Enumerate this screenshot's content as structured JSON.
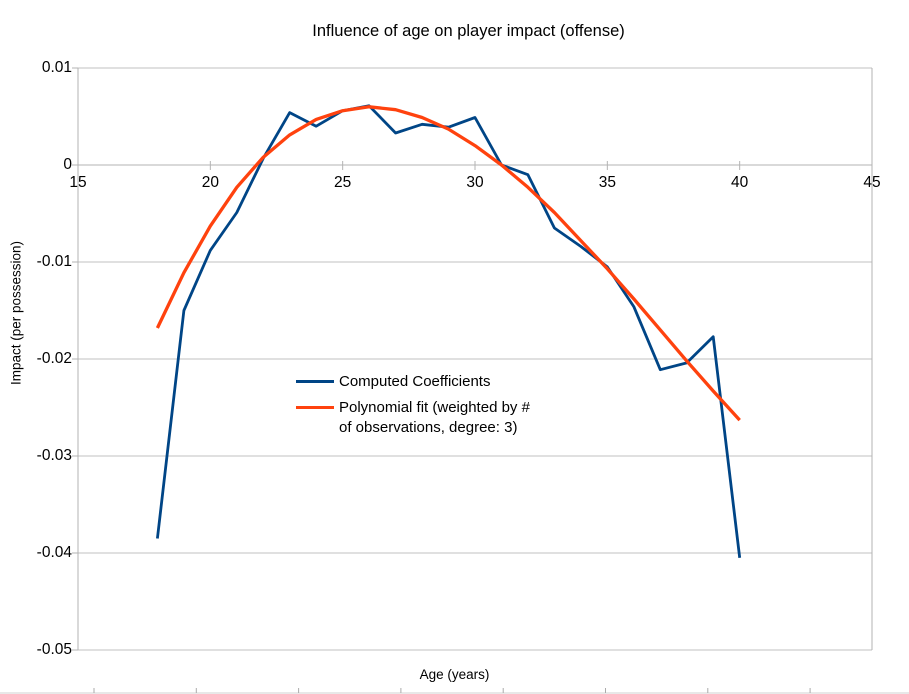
{
  "title": "Influence of age on player impact (offense)",
  "colors": {
    "series1": "#004586",
    "series2": "#FF420E",
    "grid": "#C0C0C0",
    "axis": "#B3B3B3",
    "text": "#000000",
    "background": "#FFFFFF"
  },
  "chart_data": {
    "type": "line",
    "title": "Influence of age on player impact (offense)",
    "xlabel": "Age (years)",
    "ylabel": "Impact (per possession)",
    "xlim": [
      15,
      45
    ],
    "ylim": [
      -0.05,
      0.01
    ],
    "x_ticks": [
      15,
      20,
      25,
      30,
      35,
      40,
      45
    ],
    "x_tick_labels": [
      "15",
      "20",
      "25",
      "30",
      "35",
      "40",
      "45"
    ],
    "y_ticks": [
      0.01,
      0,
      -0.01,
      -0.02,
      -0.03,
      -0.04,
      -0.05
    ],
    "y_tick_labels": [
      "0.01",
      "0",
      "-0.01",
      "-0.02",
      "-0.03",
      "-0.04",
      "-0.05"
    ],
    "grid": true,
    "legend_position": "inside-center-left",
    "x": [
      18,
      19,
      20,
      21,
      22,
      23,
      24,
      25,
      26,
      27,
      28,
      29,
      30,
      31,
      32,
      33,
      34,
      35,
      36,
      37,
      38,
      39,
      40
    ],
    "series": [
      {
        "name": "Computed Coefficients",
        "color": "#004586",
        "values": [
          -0.0385,
          -0.015,
          -0.0088,
          -0.0049,
          0.0007,
          0.0054,
          0.004,
          0.0056,
          0.0061,
          0.0033,
          0.0042,
          0.0039,
          0.0049,
          0.0,
          -0.001,
          -0.0065,
          -0.0084,
          -0.0105,
          -0.0146,
          -0.0211,
          -0.0204,
          -0.0177,
          -0.0405
        ]
      },
      {
        "name": "Polynomial fit (weighted by # of observations, degree: 3)",
        "color": "#FF420E",
        "values": [
          -0.0168,
          -0.0111,
          -0.0063,
          -0.0023,
          0.0008,
          0.0031,
          0.0047,
          0.0056,
          0.006,
          0.0057,
          0.0049,
          0.0037,
          0.002,
          0.0,
          -0.0023,
          -0.0049,
          -0.0078,
          -0.0107,
          -0.0138,
          -0.017,
          -0.0202,
          -0.0233,
          -0.0263
        ]
      }
    ]
  },
  "legend": {
    "items": [
      {
        "label": "Computed Coefficients"
      },
      {
        "label": "Polynomial fit (weighted by # of observations, degree: 3)"
      }
    ]
  }
}
